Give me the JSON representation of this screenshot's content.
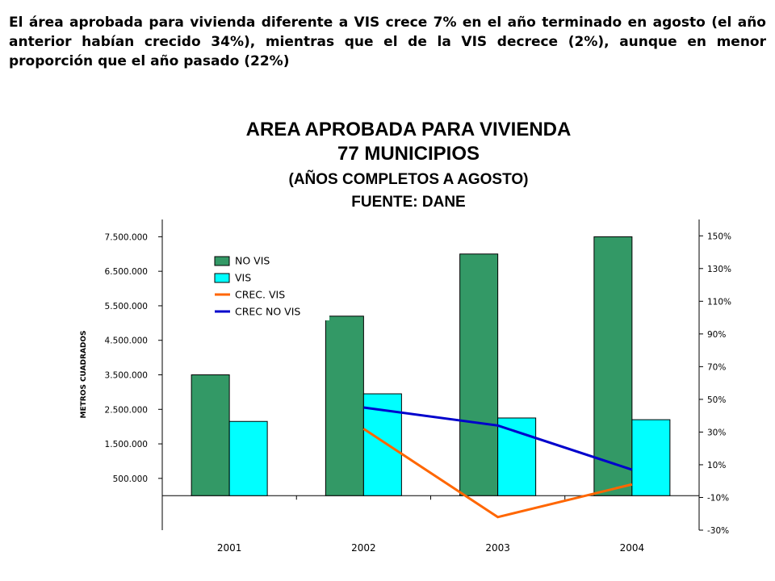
{
  "intro": "El área aprobada para vivienda diferente a VIS crece 7% en el año terminado en agosto (el año anterior habían crecido 34%), mientras que el de la VIS decrece (2%), aunque en menor proporción que el año pasado (22%)",
  "chart_data": {
    "type": "bar",
    "title_lines": [
      "AREA APROBADA PARA VIVIENDA",
      "77 MUNICIPIOS",
      "(AÑOS COMPLETOS A AGOSTO)",
      "FUENTE: DANE"
    ],
    "categories": [
      "2001",
      "2002",
      "2003",
      "2004"
    ],
    "ylabel": "METROS CUADRADOS",
    "y_left_ticks": [
      "500.000",
      "1.500.000",
      "2.500.000",
      "3.500.000",
      "4.500.000",
      "5.500.000",
      "6.500.000",
      "7.500.000"
    ],
    "y_right_ticks": [
      "-30%",
      "-10%",
      "10%",
      "30%",
      "50%",
      "70%",
      "90%",
      "110%",
      "130%",
      "150%"
    ],
    "left_axis_range": [
      -1000000,
      8000000
    ],
    "right_axis_range": [
      -30,
      160
    ],
    "series": [
      {
        "name": "NO VIS",
        "kind": "bar",
        "axis": "left",
        "color": "#339966",
        "values": [
          3500000,
          5200000,
          7000000,
          7500000
        ]
      },
      {
        "name": "VIS",
        "kind": "bar",
        "axis": "left",
        "color": "#00ffff",
        "values": [
          2150000,
          2950000,
          2250000,
          2200000
        ]
      },
      {
        "name": "CREC. VIS",
        "kind": "line",
        "axis": "right",
        "color": "#ff6600",
        "values": [
          null,
          32,
          -22,
          -2
        ]
      },
      {
        "name": "CREC NO VIS",
        "kind": "line",
        "axis": "right",
        "color": "#0000cc",
        "values": [
          null,
          45,
          34,
          7
        ]
      }
    ],
    "legend_position": "top-left"
  }
}
